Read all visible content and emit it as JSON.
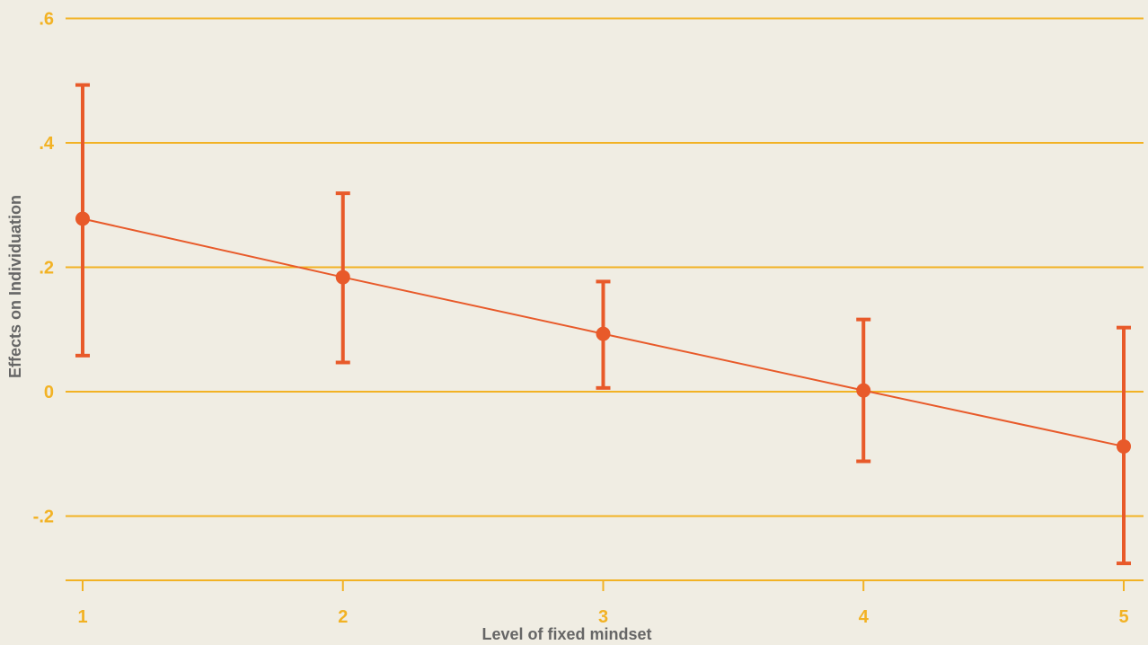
{
  "chart_data": {
    "type": "line",
    "title": "",
    "xlabel": "Level of fixed mindset",
    "ylabel": "Effects on Individuation",
    "x": [
      1,
      2,
      3,
      4,
      5
    ],
    "x_tick_labels": [
      "1",
      "2",
      "3",
      "4",
      "5"
    ],
    "y_ticks": [
      0.6,
      0.4,
      0.2,
      0,
      -0.2
    ],
    "y_tick_labels": [
      ".6",
      ".4",
      ".2",
      "0",
      "-.2"
    ],
    "ylim": [
      -0.3,
      0.6
    ],
    "grid": true,
    "series": [
      {
        "values": [
          0.278,
          0.184,
          0.093,
          0.002,
          -0.088
        ],
        "error_low": [
          0.058,
          0.047,
          0.006,
          -0.112,
          -0.276
        ],
        "error_high": [
          0.493,
          0.319,
          0.177,
          0.116,
          0.103
        ]
      }
    ],
    "colors": {
      "background": "#f0ede3",
      "grid": "#f2b224",
      "tick_text": "#f2b224",
      "axis_title": "#666666",
      "series": "#e85a2a"
    }
  }
}
